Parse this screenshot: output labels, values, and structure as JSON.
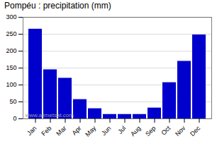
{
  "chart_data": {
    "type": "bar",
    "title": "Pompéu : precipitation (mm)",
    "categories": [
      "Jan",
      "Feb",
      "Mar",
      "Apr",
      "May",
      "Jun",
      "Jul",
      "Aug",
      "Sep",
      "Oct",
      "Nov",
      "Dec"
    ],
    "values": [
      265,
      145,
      120,
      57,
      30,
      13,
      13,
      13,
      32,
      107,
      170,
      248
    ],
    "color": "#0000cc",
    "ylim": [
      0,
      300
    ],
    "yticks": [
      0,
      50,
      100,
      150,
      200,
      250,
      300
    ],
    "grid": true,
    "annotations": [
      "www.allmetsat.com"
    ]
  }
}
